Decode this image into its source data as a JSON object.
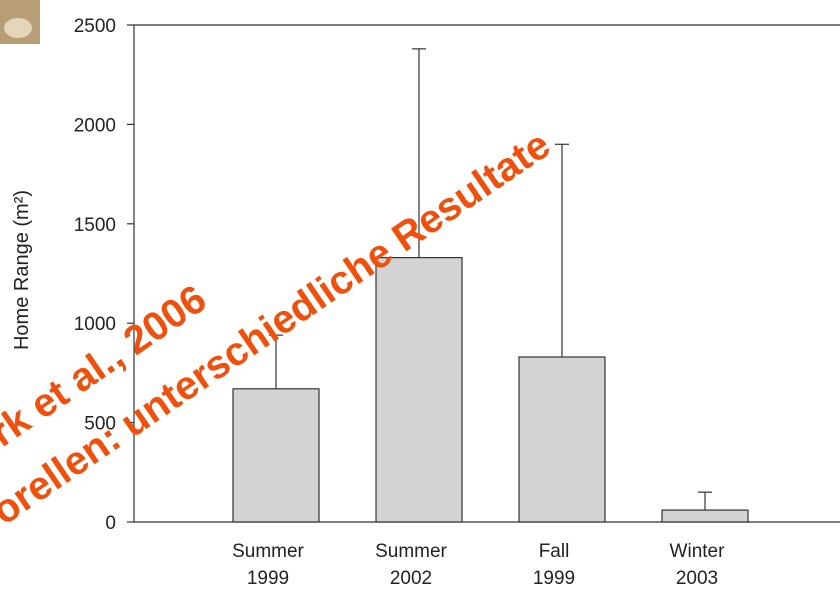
{
  "chart_data": {
    "type": "bar",
    "y_label": "Home Range (m²)",
    "categories": [
      [
        "Summer",
        "1999"
      ],
      [
        "Summer",
        "2002"
      ],
      [
        "Fall",
        "1999"
      ],
      [
        "Winter",
        "2003"
      ]
    ],
    "values": [
      670,
      1330,
      830,
      60
    ],
    "errors": [
      270,
      1050,
      1070,
      90
    ],
    "color": "#d3d3d3",
    "ylim": [
      0,
      2500
    ],
    "yticks": [
      0,
      500,
      1000,
      1500,
      2000,
      2500
    ]
  },
  "overlay": {
    "line1": "rk et al., 2006",
    "line2": "orellen: unterschiedliche Resultate",
    "color": "#f0500c"
  }
}
